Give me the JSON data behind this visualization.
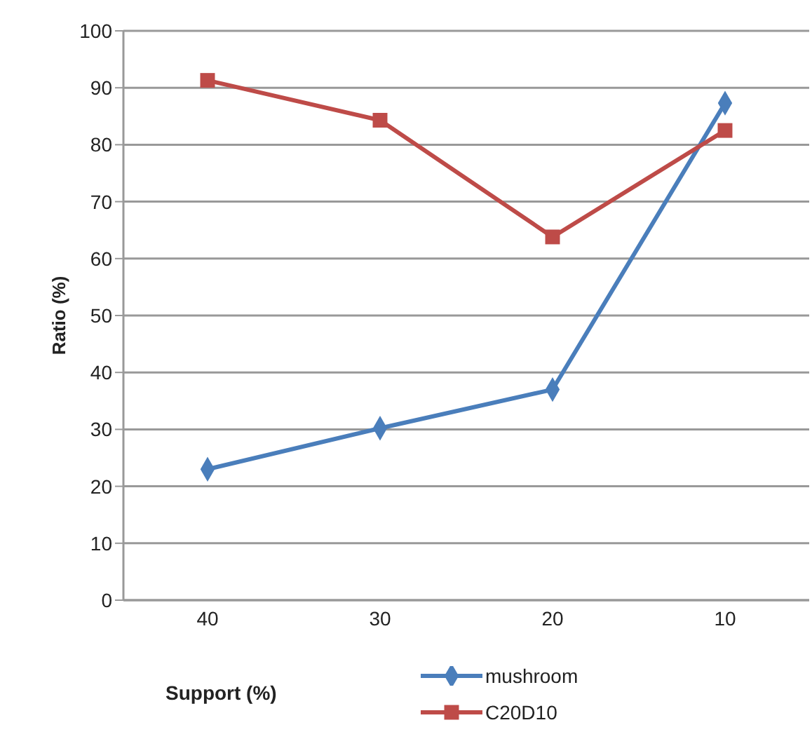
{
  "chart_data": {
    "type": "line",
    "xlabel": "Support (%)",
    "ylabel": "Ratio (%)",
    "categories": [
      "40",
      "30",
      "20",
      "10"
    ],
    "series": [
      {
        "name": "mushroom",
        "color": "#4a7ebb",
        "marker": "diamond",
        "values": [
          23,
          30.2,
          37,
          87.3
        ]
      },
      {
        "name": "C20D10",
        "color": "#be4b48",
        "marker": "square",
        "values": [
          91.3,
          84.3,
          63.8,
          82.5
        ]
      }
    ],
    "ylim": [
      0,
      100
    ],
    "yticks": [
      0,
      10,
      20,
      30,
      40,
      50,
      60,
      70,
      80,
      90,
      100
    ],
    "grid": "y",
    "legend": "bottom",
    "line_style": "solid"
  }
}
